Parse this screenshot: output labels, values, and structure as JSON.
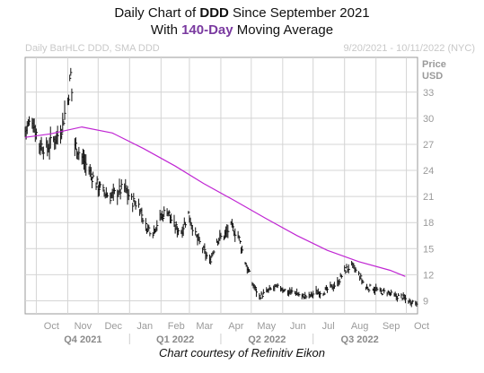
{
  "header": {
    "title_prefix": "Daily Chart of ",
    "ticker": "DDD",
    "title_suffix": " Since September 2021",
    "line2_prefix": "With ",
    "line2_highlight": "140-Day",
    "line2_suffix": " Moving Average",
    "highlight_color": "#7a3aa0"
  },
  "subheader": {
    "left": "Daily BarHLC DDD, SMA DDD",
    "right": "9/20/2021 - 10/11/2022 (NYC)"
  },
  "footer": {
    "credit": "Chart courtesy of Refinitiv Eikon"
  },
  "chart_data": {
    "type": "line",
    "ylabel_lines": [
      "Price",
      "USD"
    ],
    "ylim": [
      7.5,
      37
    ],
    "yticks": [
      9,
      12,
      15,
      18,
      21,
      24,
      27,
      30,
      33
    ],
    "y_axis_side": "right",
    "grid": true,
    "months": [
      "Oct",
      "Nov",
      "Dec",
      "Jan",
      "Feb",
      "Mar",
      "Apr",
      "May",
      "Jun",
      "Jul",
      "Aug",
      "Sep",
      "Oct"
    ],
    "quarters": [
      "Q4 2021",
      "Q1 2022",
      "Q2 2022",
      "Q3 2022"
    ],
    "series": [
      {
        "kind": "bar-hlc",
        "color": "#111111",
        "x": [
          "2021-09-20",
          "2021-09-27",
          "2021-10-04",
          "2021-10-11",
          "2021-10-18",
          "2021-10-25",
          "2021-11-01",
          "2021-11-04",
          "2021-11-08",
          "2021-11-15",
          "2021-11-22",
          "2021-11-29",
          "2021-12-06",
          "2021-12-13",
          "2021-12-20",
          "2021-12-27",
          "2022-01-03",
          "2022-01-10",
          "2022-01-17",
          "2022-01-24",
          "2022-01-31",
          "2022-02-07",
          "2022-02-14",
          "2022-02-21",
          "2022-02-28",
          "2022-03-07",
          "2022-03-14",
          "2022-03-21",
          "2022-03-28",
          "2022-04-04",
          "2022-04-11",
          "2022-04-18",
          "2022-04-25",
          "2022-05-02",
          "2022-05-09",
          "2022-05-16",
          "2022-05-23",
          "2022-05-30",
          "2022-06-06",
          "2022-06-13",
          "2022-06-20",
          "2022-06-27",
          "2022-07-04",
          "2022-07-11",
          "2022-07-18",
          "2022-07-25",
          "2022-08-01",
          "2022-08-08",
          "2022-08-15",
          "2022-08-22",
          "2022-08-29",
          "2022-09-05",
          "2022-09-12",
          "2022-09-19",
          "2022-09-26",
          "2022-10-03",
          "2022-10-11"
        ],
        "values": [
          28.5,
          30,
          27,
          26.5,
          27.5,
          28.5,
          32,
          35,
          27,
          25.5,
          24,
          22.5,
          21.5,
          21,
          21.5,
          22,
          20.5,
          20,
          17.5,
          17,
          18.5,
          19.5,
          17.5,
          17,
          19,
          16.5,
          15,
          13.5,
          16,
          16.5,
          17.5,
          16.5,
          13.5,
          11,
          9.5,
          10,
          10.5,
          10.5,
          10,
          10,
          9.5,
          9.5,
          10,
          10,
          10.5,
          11,
          12.5,
          13,
          12,
          10.5,
          10.5,
          10,
          10,
          9.5,
          9.5,
          9,
          8.8
        ]
      },
      {
        "name": "SMA DDD",
        "kind": "sma",
        "color": "#c026d3",
        "x": [
          "2021-09-20",
          "2021-10-15",
          "2021-11-15",
          "2021-12-15",
          "2022-01-15",
          "2022-02-15",
          "2022-03-15",
          "2022-04-15",
          "2022-05-15",
          "2022-06-15",
          "2022-07-15",
          "2022-08-15",
          "2022-09-15",
          "2022-09-30"
        ],
        "values": [
          27.8,
          28.2,
          29.0,
          28.3,
          26.5,
          24.5,
          22.5,
          20.5,
          18.5,
          16.5,
          14.8,
          13.5,
          12.5,
          11.8
        ]
      }
    ]
  }
}
